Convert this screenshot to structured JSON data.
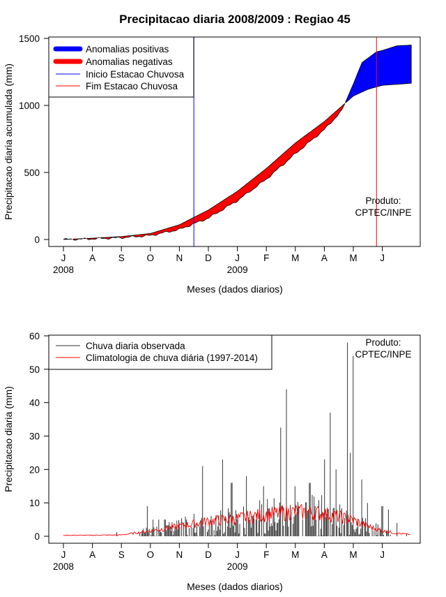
{
  "chart_data": [
    {
      "type": "area",
      "title": "Precipitacao diaria 2008/2009 : Regiao 45",
      "xlabel": "Meses (dados diarios)",
      "ylabel": "Precipitacao diaria acumulada (mm)",
      "ylim": [
        0,
        1500
      ],
      "yticks": [
        "0",
        "500",
        "1000",
        "1500"
      ],
      "months": [
        "J",
        "A",
        "S",
        "O",
        "N",
        "D",
        "J",
        "F",
        "M",
        "A",
        "M",
        "J"
      ],
      "years": [
        "2008",
        "2009"
      ],
      "legend": [
        {
          "label": "Anomalias positivas",
          "color": "#0000ff"
        },
        {
          "label": "Anomalias negativas",
          "color": "#ff0000"
        },
        {
          "label": "Inicio Estacao Chuvosa",
          "color": "#0000ff"
        },
        {
          "label": "Fim Estacao Chuvosa",
          "color": "#ff0000"
        }
      ],
      "product": [
        "Produto:",
        "CPTEC/INPE"
      ],
      "rainy_season_start_month": 4.5,
      "rainy_season_end_month": 10.8,
      "climatology_cumulative": [
        [
          0,
          0
        ],
        [
          1,
          10
        ],
        [
          2,
          22
        ],
        [
          3,
          45
        ],
        [
          4,
          110
        ],
        [
          5,
          220
        ],
        [
          6,
          360
        ],
        [
          7,
          530
        ],
        [
          8,
          720
        ],
        [
          9,
          880
        ],
        [
          10,
          1070
        ],
        [
          10.5,
          1120
        ],
        [
          11,
          1150
        ],
        [
          12,
          1165
        ]
      ],
      "observed_cumulative": [
        [
          0,
          0
        ],
        [
          1,
          5
        ],
        [
          2,
          14
        ],
        [
          3,
          30
        ],
        [
          4,
          75
        ],
        [
          5,
          160
        ],
        [
          6,
          290
        ],
        [
          7,
          450
        ],
        [
          8,
          640
        ],
        [
          9,
          820
        ],
        [
          9.6,
          960
        ],
        [
          9.8,
          1060
        ],
        [
          10,
          1160
        ],
        [
          10.3,
          1320
        ],
        [
          10.8,
          1400
        ],
        [
          11,
          1410
        ],
        [
          11.5,
          1445
        ],
        [
          12,
          1450
        ]
      ]
    },
    {
      "type": "line",
      "xlabel": "Meses (dados diarios)",
      "ylabel": "Precipitacao diaria (mm)",
      "ylim": [
        0,
        60
      ],
      "yticks": [
        "0",
        "10",
        "20",
        "30",
        "40",
        "50",
        "60"
      ],
      "months": [
        "J",
        "A",
        "S",
        "O",
        "N",
        "D",
        "J",
        "F",
        "M",
        "A",
        "M",
        "J"
      ],
      "years": [
        "2008",
        "2009"
      ],
      "legend": [
        {
          "label": "Chuva diaria observada",
          "color": "#333333"
        },
        {
          "label": "Climatologia de chuva diária (1997-2014)",
          "color": "#ff0000"
        }
      ],
      "product": [
        "Produto:",
        "CPTEC/INPE"
      ],
      "climatology_daily": [
        [
          0,
          0.3
        ],
        [
          1,
          0.3
        ],
        [
          2,
          0.4
        ],
        [
          3,
          1.6
        ],
        [
          4,
          3.0
        ],
        [
          5,
          4.5
        ],
        [
          6,
          5.3
        ],
        [
          7,
          6.5
        ],
        [
          8,
          7.3
        ],
        [
          9,
          6.8
        ],
        [
          10,
          4.8
        ],
        [
          10.5,
          3.0
        ],
        [
          11,
          1.6
        ],
        [
          11.5,
          0.9
        ],
        [
          12,
          0.5
        ]
      ],
      "observed_daily_peaks": [
        [
          2.9,
          9
        ],
        [
          3.1,
          5
        ],
        [
          3.3,
          5
        ],
        [
          3.5,
          5
        ],
        [
          4.8,
          21
        ],
        [
          5.5,
          23
        ],
        [
          5.8,
          16
        ],
        [
          6.3,
          18
        ],
        [
          6.9,
          15
        ],
        [
          7.5,
          32.5
        ],
        [
          7.7,
          44
        ],
        [
          8.0,
          15
        ],
        [
          8.5,
          16
        ],
        [
          9.0,
          23
        ],
        [
          9.2,
          37
        ],
        [
          9.4,
          20
        ],
        [
          9.8,
          58
        ],
        [
          9.9,
          25
        ],
        [
          10.0,
          54
        ],
        [
          10.3,
          17
        ],
        [
          10.5,
          10
        ],
        [
          11.0,
          9
        ],
        [
          11.2,
          8
        ],
        [
          11.5,
          4
        ]
      ]
    }
  ]
}
